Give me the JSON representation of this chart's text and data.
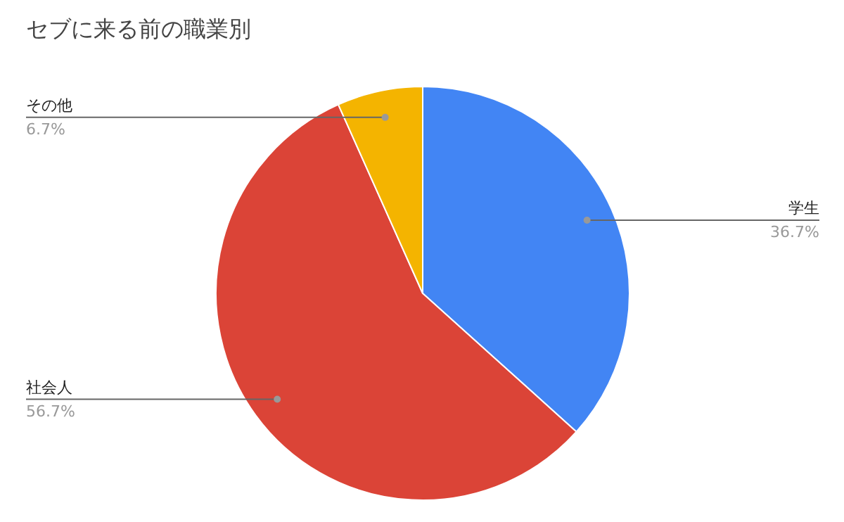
{
  "chart_data": {
    "type": "pie",
    "title": "セブに来る前の職業別",
    "categories": [
      "学生",
      "社会人",
      "その他"
    ],
    "values": [
      36.7,
      56.7,
      6.7
    ],
    "colors": [
      "#4285f4",
      "#db4437",
      "#f4b400"
    ],
    "value_labels": [
      "36.7%",
      "56.7%",
      "6.7%"
    ]
  }
}
